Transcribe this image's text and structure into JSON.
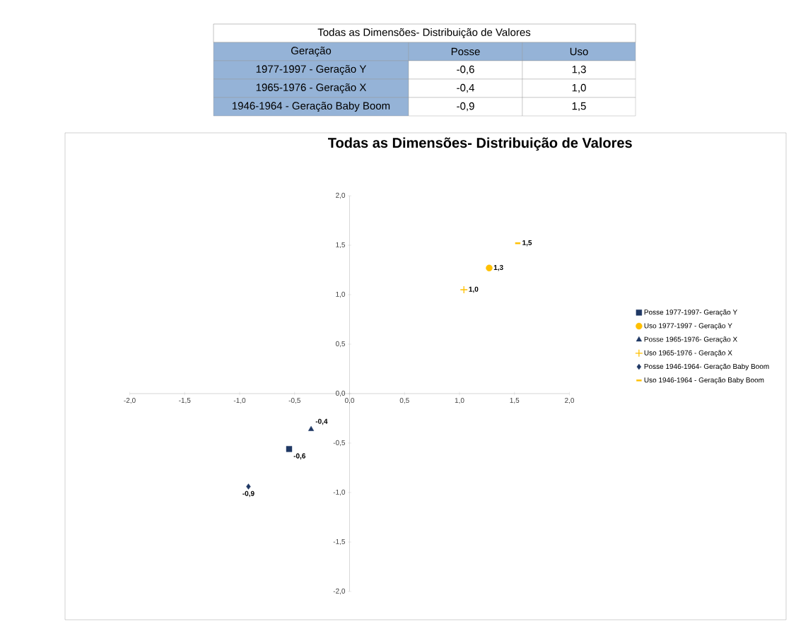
{
  "chart_data": [
    {
      "type": "other",
      "title": "Todas as Dimensões- Distribuição de Valores",
      "annotations": [
        "Geração",
        "Posse",
        "Uso",
        "1977-1997 - Geração Y",
        "-0,6",
        "1,3",
        "1965-1976 - Geração X",
        "-0,4",
        "1,0",
        "1946-1964 - Geração Baby Boom",
        "-0,9",
        "1,5"
      ]
    },
    {
      "type": "scatter",
      "title": "Todas as Dimensões- Distribuição de Valores",
      "xlim": [
        -2,
        2
      ],
      "ylim": [
        -2,
        2
      ],
      "xticks": [
        {
          "value": -2,
          "label": "-2,0"
        },
        {
          "value": -1.5,
          "label": "-1,5"
        },
        {
          "value": -1,
          "label": "-1,0"
        },
        {
          "value": -0.5,
          "label": "-0,5"
        },
        {
          "value": 0,
          "label": "0,0"
        },
        {
          "value": 0.5,
          "label": "0,5"
        },
        {
          "value": 1,
          "label": "1,0"
        },
        {
          "value": 1.5,
          "label": "1,5"
        },
        {
          "value": 2,
          "label": "2,0"
        }
      ],
      "yticks": [
        {
          "value": -2,
          "label": "-2,0"
        },
        {
          "value": -1.5,
          "label": "-1,5"
        },
        {
          "value": -1,
          "label": "-1,0"
        },
        {
          "value": -0.5,
          "label": "-0,5"
        },
        {
          "value": 0,
          "label": "0,0"
        },
        {
          "value": 0.5,
          "label": "0,5"
        },
        {
          "value": 1,
          "label": "1,0"
        },
        {
          "value": 1.5,
          "label": "1,5"
        },
        {
          "value": 2,
          "label": "2,0"
        }
      ],
      "legend": "right",
      "grid": false,
      "series": [
        {
          "name": "Posse 1977-1997- Geração Y",
          "color": "#1f3864",
          "marker": "square",
          "x": [
            -0.55
          ],
          "values": [
            -0.56
          ],
          "value_labels": [
            "-0,6"
          ]
        },
        {
          "name": "Uso 1977-1997 - Geração Y",
          "color": "#ffc000",
          "marker": "circle",
          "x": [
            1.27
          ],
          "values": [
            1.27
          ],
          "value_labels": [
            "1,3"
          ]
        },
        {
          "name": "Posse 1965-1976- Geração X",
          "color": "#1f3864",
          "marker": "triangle",
          "x": [
            -0.35
          ],
          "values": [
            -0.36
          ],
          "value_labels": [
            "-0,4"
          ]
        },
        {
          "name": "Uso 1965-1976 - Geração X",
          "color": "#ffc000",
          "marker": "cross",
          "x": [
            1.04
          ],
          "values": [
            1.05
          ],
          "value_labels": [
            "1,0"
          ]
        },
        {
          "name": "Posse 1946-1964- Geração Baby Boom",
          "color": "#1f3864",
          "marker": "diamond",
          "x": [
            -0.92
          ],
          "values": [
            -0.94
          ],
          "value_labels": [
            "-0,9"
          ]
        },
        {
          "name": "Uso 1946-1964 - Geração Baby Boom",
          "color": "#ffc000",
          "x": [
            1.53
          ],
          "values": [
            1.52
          ],
          "value_labels": [
            "1,5"
          ]
        }
      ]
    }
  ]
}
